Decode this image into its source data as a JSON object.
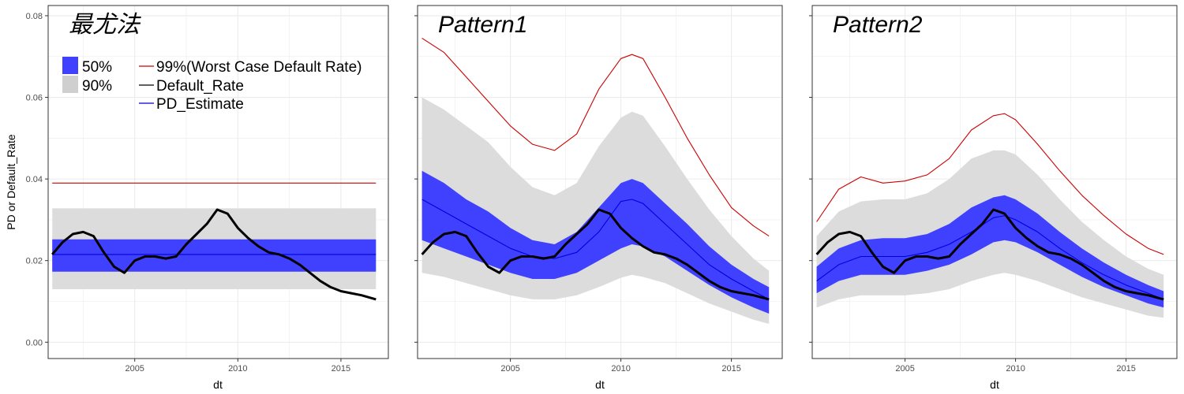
{
  "chart_data": {
    "type": "line",
    "ylabel": "PD or Default_Rate",
    "xlabel": "dt",
    "xlim": [
      2000.8,
      2017.3
    ],
    "ylim": [
      -0.004,
      0.0825
    ],
    "x_ticks": [
      2005,
      2010,
      2015
    ],
    "y_ticks": [
      0.0,
      0.02,
      0.04,
      0.06,
      0.08
    ],
    "y_tick_labels": [
      "0.00",
      "0.02",
      "0.04",
      "0.06",
      "0.08"
    ],
    "legend": {
      "placement": "top-left (first panel)",
      "bands": [
        {
          "label": "50%",
          "color": "#4040ff"
        },
        {
          "label": "90%",
          "color": "#cfcfcf"
        }
      ],
      "lines": [
        {
          "label": "99%(Worst Case Default Rate)",
          "color": "#cc0000"
        },
        {
          "label": "Default_Rate",
          "color": "#000000"
        },
        {
          "label": "PD_Estimate",
          "color": "#0000cc"
        }
      ]
    },
    "colors": {
      "band50": "#4040ff",
      "band90": "#dcdcdc",
      "worst_case": "#cc0000",
      "default_rate": "#000000",
      "pd_estimate": "#0000dd",
      "grid": "#ebebeb"
    },
    "default_rate": {
      "x": [
        2001.0,
        2001.5,
        2002.0,
        2002.5,
        2003.0,
        2003.5,
        2004.0,
        2004.5,
        2005.0,
        2005.5,
        2006.0,
        2006.5,
        2007.0,
        2007.5,
        2008.0,
        2008.5,
        2009.0,
        2009.5,
        2010.0,
        2010.5,
        2011.0,
        2011.5,
        2012.0,
        2012.5,
        2013.0,
        2013.5,
        2014.0,
        2014.5,
        2015.0,
        2015.5,
        2016.0,
        2016.7
      ],
      "y": [
        0.0215,
        0.0245,
        0.0265,
        0.027,
        0.026,
        0.022,
        0.0185,
        0.017,
        0.02,
        0.021,
        0.021,
        0.0205,
        0.021,
        0.024,
        0.0265,
        0.029,
        0.0325,
        0.0315,
        0.028,
        0.0255,
        0.0235,
        0.022,
        0.0215,
        0.0205,
        0.019,
        0.017,
        0.015,
        0.0135,
        0.0125,
        0.012,
        0.0115,
        0.0105
      ]
    },
    "panels": [
      {
        "title": "最尤法",
        "x": [
          2001.0,
          2016.7
        ],
        "pd_estimate": [
          0.0215,
          0.0215
        ],
        "band50_lower": [
          0.0173,
          0.0173
        ],
        "band50_upper": [
          0.0252,
          0.0252
        ],
        "band90_lower": [
          0.013,
          0.013
        ],
        "band90_upper": [
          0.0328,
          0.0328
        ],
        "worst_case": [
          0.039,
          0.039
        ]
      },
      {
        "title": "Pattern1",
        "x": [
          2001.0,
          2002.0,
          2003.0,
          2004.0,
          2005.0,
          2006.0,
          2007.0,
          2008.0,
          2009.0,
          2010.0,
          2010.5,
          2011.0,
          2012.0,
          2013.0,
          2014.0,
          2015.0,
          2016.0,
          2016.7
        ],
        "pd_estimate": [
          0.035,
          0.032,
          0.029,
          0.026,
          0.023,
          0.021,
          0.0205,
          0.022,
          0.027,
          0.0345,
          0.035,
          0.034,
          0.029,
          0.024,
          0.019,
          0.0155,
          0.0125,
          0.0105
        ],
        "band50_lower": [
          0.025,
          0.023,
          0.021,
          0.019,
          0.017,
          0.0155,
          0.0155,
          0.017,
          0.02,
          0.023,
          0.024,
          0.0235,
          0.021,
          0.0175,
          0.014,
          0.011,
          0.0085,
          0.007
        ],
        "band50_upper": [
          0.042,
          0.039,
          0.035,
          0.032,
          0.028,
          0.025,
          0.024,
          0.027,
          0.033,
          0.039,
          0.04,
          0.039,
          0.034,
          0.029,
          0.0235,
          0.019,
          0.0155,
          0.0135
        ],
        "band90_lower": [
          0.017,
          0.016,
          0.0145,
          0.013,
          0.0115,
          0.0105,
          0.0105,
          0.0115,
          0.0135,
          0.0158,
          0.0165,
          0.016,
          0.0145,
          0.012,
          0.0095,
          0.0075,
          0.0055,
          0.0045
        ],
        "band90_upper": [
          0.06,
          0.057,
          0.053,
          0.049,
          0.043,
          0.038,
          0.036,
          0.039,
          0.048,
          0.055,
          0.0565,
          0.0555,
          0.048,
          0.04,
          0.0325,
          0.026,
          0.0205,
          0.0175
        ],
        "worst_case": [
          0.0745,
          0.071,
          0.065,
          0.059,
          0.053,
          0.0485,
          0.047,
          0.051,
          0.062,
          0.0695,
          0.0705,
          0.0695,
          0.06,
          0.05,
          0.041,
          0.033,
          0.0285,
          0.026
        ]
      },
      {
        "title": "Pattern2",
        "x": [
          2001.0,
          2002.0,
          2003.0,
          2004.0,
          2005.0,
          2006.0,
          2007.0,
          2008.0,
          2009.0,
          2009.5,
          2010.0,
          2011.0,
          2012.0,
          2013.0,
          2014.0,
          2015.0,
          2016.0,
          2016.7
        ],
        "pd_estimate": [
          0.015,
          0.019,
          0.021,
          0.021,
          0.021,
          0.022,
          0.024,
          0.027,
          0.0305,
          0.031,
          0.03,
          0.027,
          0.023,
          0.0195,
          0.0165,
          0.014,
          0.012,
          0.0105
        ],
        "band50_lower": [
          0.012,
          0.015,
          0.0165,
          0.0165,
          0.0165,
          0.0175,
          0.019,
          0.0215,
          0.0245,
          0.025,
          0.0245,
          0.022,
          0.019,
          0.016,
          0.0135,
          0.0115,
          0.0095,
          0.0085
        ],
        "band50_upper": [
          0.0185,
          0.023,
          0.025,
          0.0255,
          0.0255,
          0.0265,
          0.029,
          0.033,
          0.0355,
          0.036,
          0.035,
          0.0315,
          0.027,
          0.023,
          0.0195,
          0.0165,
          0.014,
          0.0125
        ],
        "band90_lower": [
          0.0085,
          0.0105,
          0.0115,
          0.0115,
          0.0115,
          0.012,
          0.013,
          0.015,
          0.0165,
          0.017,
          0.0165,
          0.015,
          0.013,
          0.011,
          0.0095,
          0.008,
          0.0065,
          0.006
        ],
        "band90_upper": [
          0.026,
          0.032,
          0.0345,
          0.035,
          0.035,
          0.0365,
          0.04,
          0.045,
          0.047,
          0.047,
          0.046,
          0.041,
          0.035,
          0.0295,
          0.025,
          0.021,
          0.018,
          0.0165
        ],
        "worst_case": [
          0.0295,
          0.0375,
          0.0405,
          0.039,
          0.0395,
          0.041,
          0.045,
          0.052,
          0.0555,
          0.056,
          0.0545,
          0.0485,
          0.042,
          0.036,
          0.031,
          0.0265,
          0.023,
          0.0215
        ]
      }
    ]
  }
}
